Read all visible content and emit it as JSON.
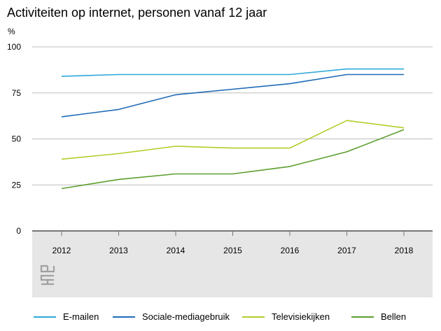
{
  "header": {
    "title": "Activiteiten op internet, personen vanaf 12 jaar",
    "unit": "%"
  },
  "colors": {
    "email": "#2ea8d9",
    "sociale": "#1f6bb8",
    "televisie": "#b4cc2a",
    "bellen": "#5c9e2e",
    "plot_bg": "#e6e6e6",
    "grid": "#bdbdbd"
  },
  "chart_data": {
    "type": "line",
    "title": "Activiteiten op internet, personen vanaf 12 jaar",
    "ylabel": "%",
    "xlabel": "",
    "x": [
      "2012",
      "2013",
      "2014",
      "2015",
      "2016",
      "2017",
      "2018"
    ],
    "ylim": [
      0,
      100
    ],
    "yticks": [
      "0",
      "25",
      "50",
      "75",
      "100"
    ],
    "legend_position": "bottom",
    "series": [
      {
        "key": "email",
        "name": "E-mailen",
        "values": [
          84,
          85,
          85,
          85,
          85,
          88,
          88
        ]
      },
      {
        "key": "sociale",
        "name": "Sociale-mediagebruik",
        "values": [
          62,
          66,
          74,
          77,
          80,
          85,
          85
        ]
      },
      {
        "key": "televisie",
        "name": "Televisiekijken",
        "values": [
          39,
          42,
          46,
          45,
          45,
          60,
          56
        ]
      },
      {
        "key": "bellen",
        "name": "Bellen",
        "values": [
          23,
          28,
          31,
          31,
          35,
          43,
          55
        ]
      }
    ]
  },
  "logo": {
    "icon": "cbs-logo-icon"
  }
}
